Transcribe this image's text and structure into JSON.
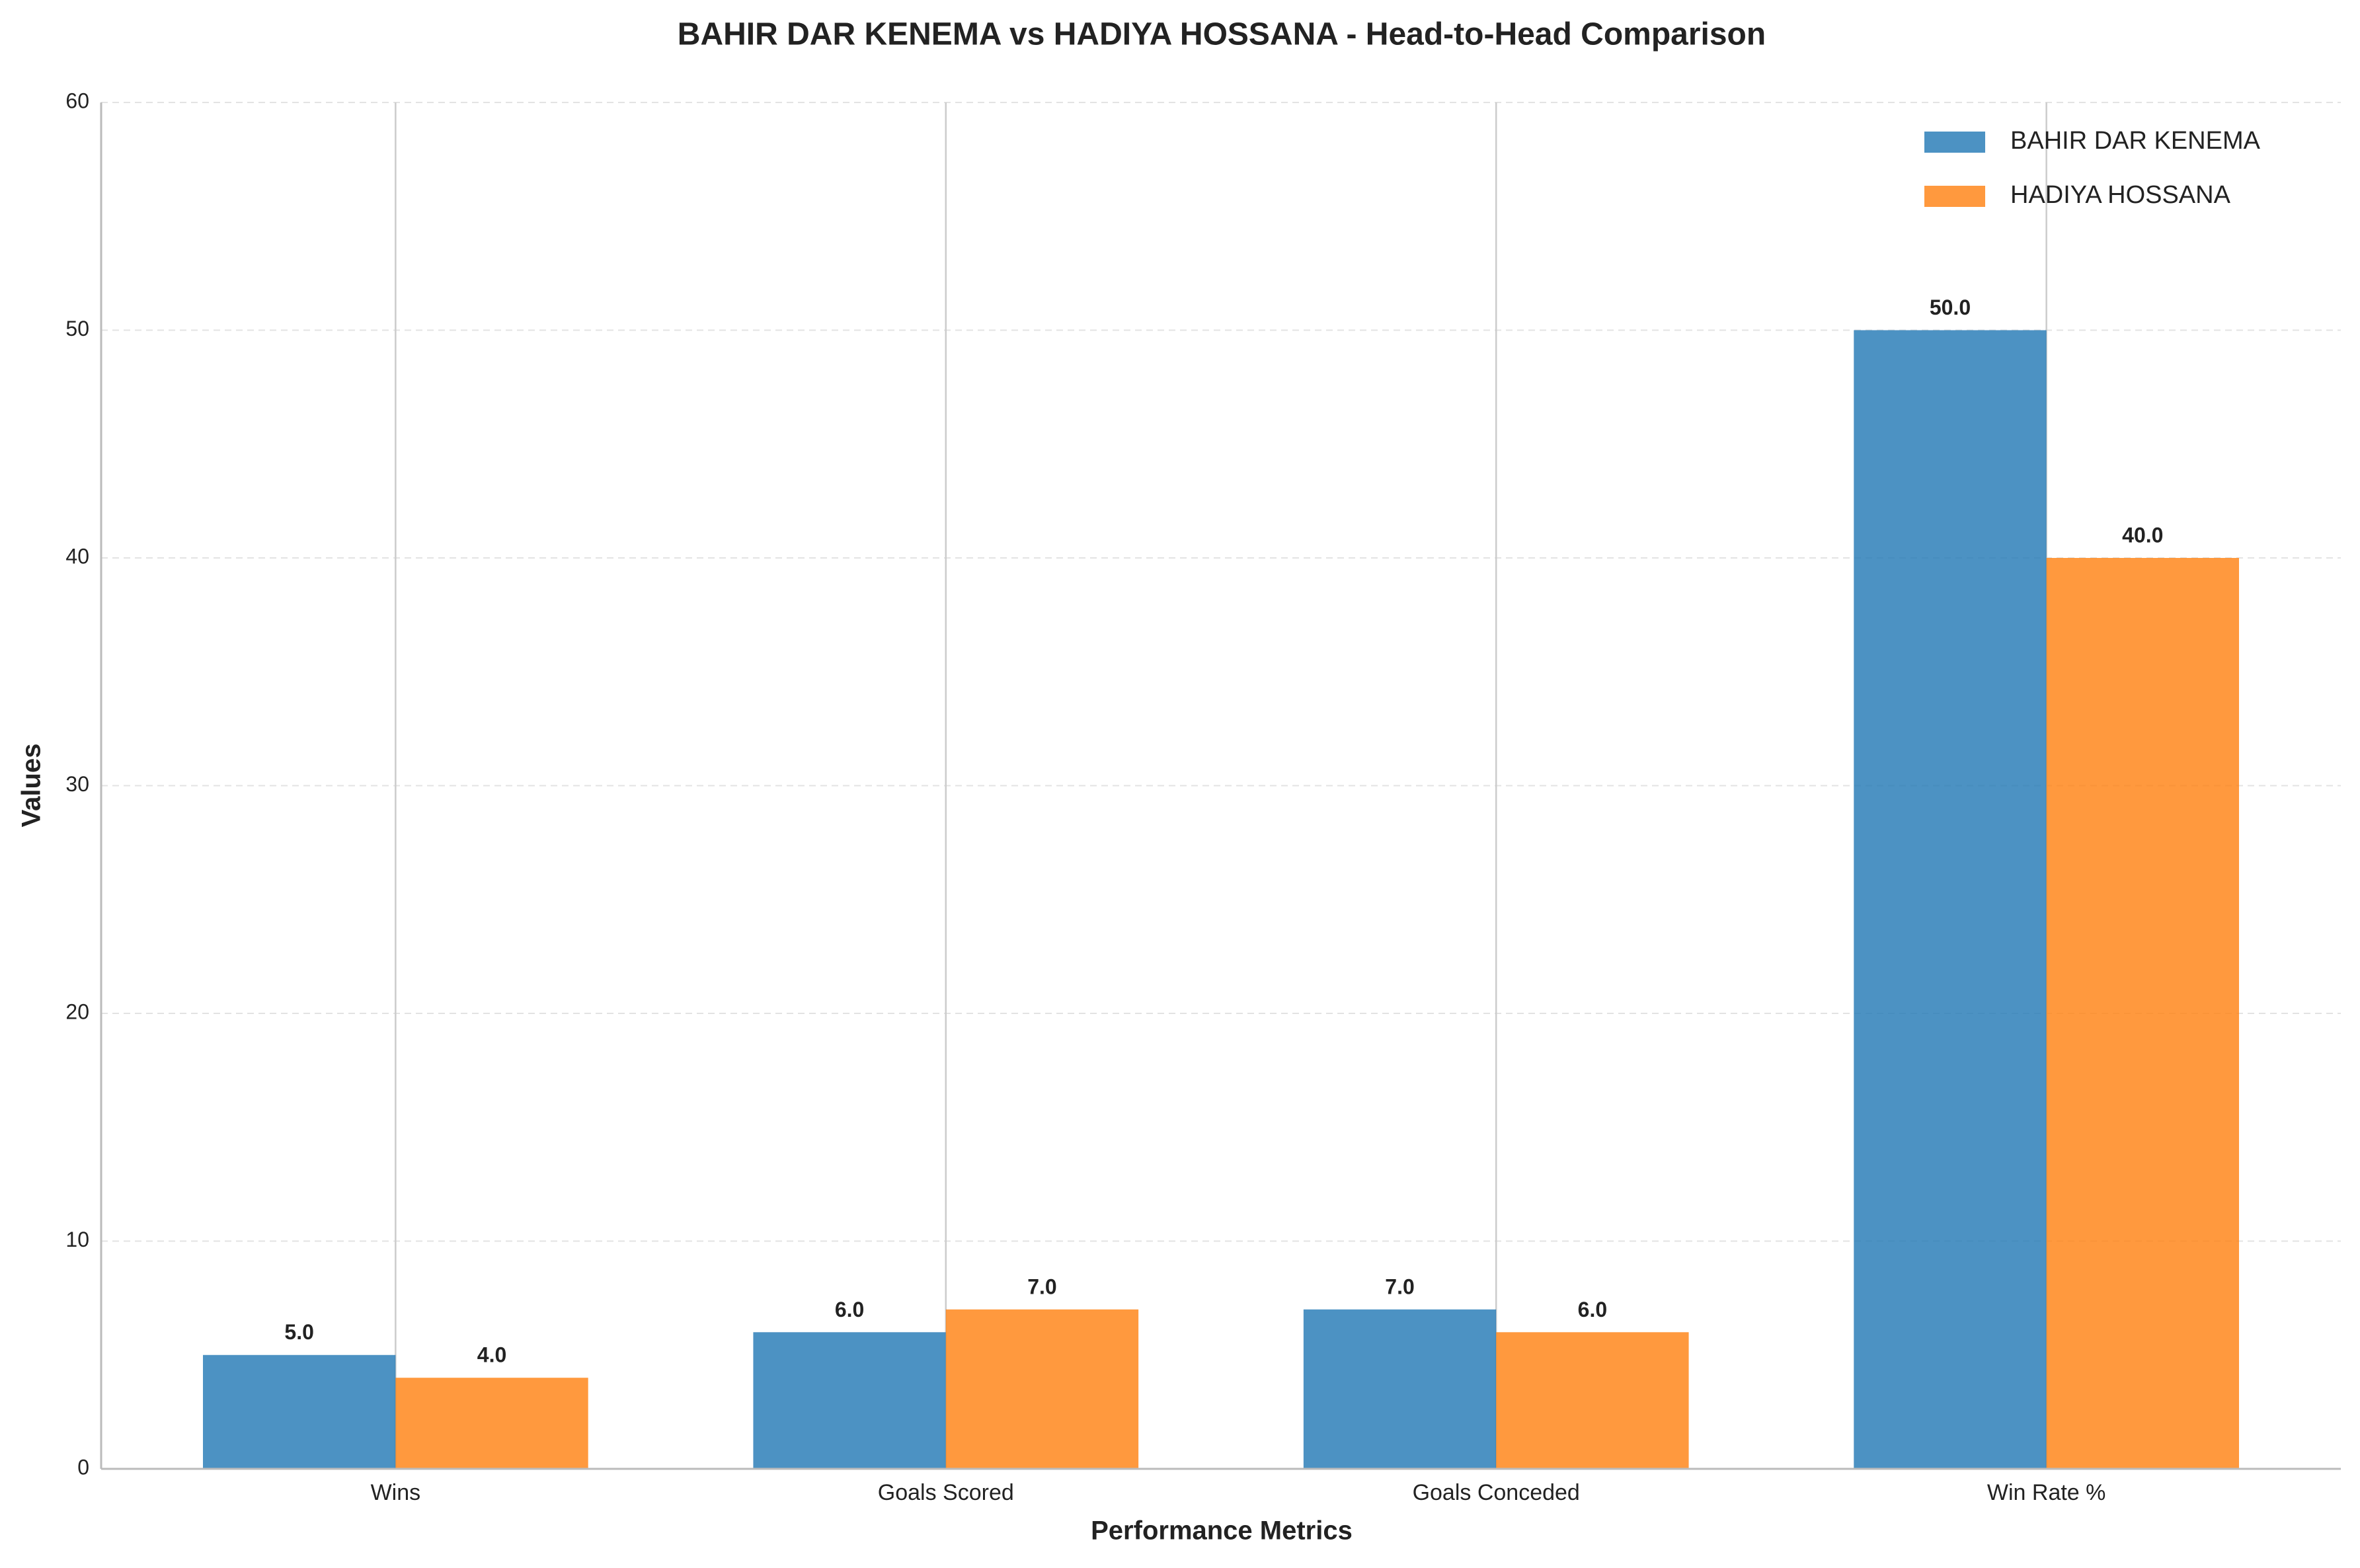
{
  "chart_data": {
    "type": "bar",
    "title": "BAHIR DAR KENEMA vs HADIYA HOSSANA - Head-to-Head Comparison",
    "x_label": "Performance Metrics",
    "y_label": "Values",
    "categories": [
      "Wins",
      "Goals Scored",
      "Goals Conceded",
      "Win Rate %"
    ],
    "series": [
      {
        "name": "BAHIR DAR KENEMA",
        "color": "#1f77b4",
        "values": [
          5,
          6,
          7,
          50
        ],
        "value_labels": [
          "5.0",
          "6.0",
          "7.0",
          "50.0"
        ]
      },
      {
        "name": "HADIYA HOSSANA",
        "color": "#ff7f0e",
        "values": [
          4,
          7,
          6,
          40
        ],
        "value_labels": [
          "4.0",
          "7.0",
          "6.0",
          "40.0"
        ]
      }
    ],
    "ylim": [
      0,
      60
    ],
    "yticks": [
      0,
      10,
      20,
      30,
      40,
      50,
      60
    ],
    "grid": true,
    "legend": "upper right"
  }
}
